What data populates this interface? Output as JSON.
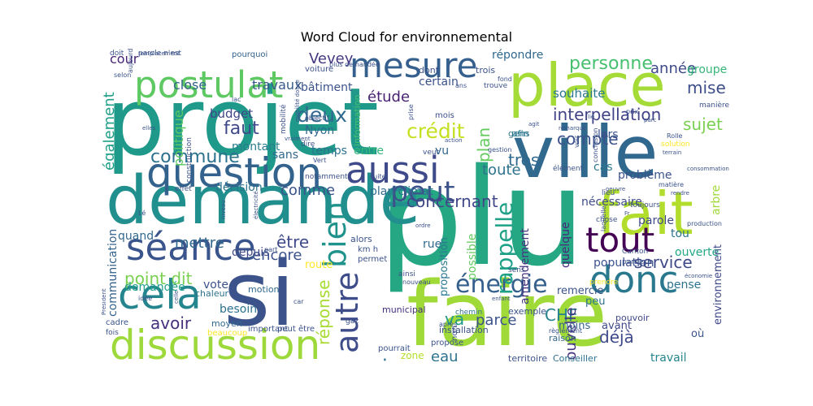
{
  "chart_data": {
    "type": "wordcloud",
    "title": "Word Cloud for environnemental",
    "colormap": "viridis",
    "words": [
      {
        "text": "plu",
        "color": "#26a784"
      },
      {
        "text": "projet",
        "color": "#1f9a8a"
      },
      {
        "text": "si",
        "color": "#3b528b"
      },
      {
        "text": "faire",
        "color": "#a0da39"
      },
      {
        "text": "ville",
        "color": "#31688e"
      },
      {
        "text": "demande",
        "color": "#218f8d"
      },
      {
        "text": "place",
        "color": "#a5db36"
      },
      {
        "text": "fait",
        "color": "#b2dd2d"
      },
      {
        "text": "tout",
        "color": "#440154"
      },
      {
        "text": "discussion",
        "color": "#9dd93b"
      },
      {
        "text": "question",
        "color": "#33638d"
      },
      {
        "text": "postulat",
        "color": "#5ec962"
      },
      {
        "text": "mesure",
        "color": "#35608d"
      },
      {
        "text": "aussi",
        "color": "#3e4a89"
      },
      {
        "text": "cela",
        "color": "#25858e"
      },
      {
        "text": "séance",
        "color": "#3a548c"
      },
      {
        "text": "donc",
        "color": "#2a788e"
      },
      {
        "text": "bien",
        "color": "#20928c"
      },
      {
        "text": "peut",
        "color": "#3b528b"
      },
      {
        "text": "autre",
        "color": "#3e4c8a"
      },
      {
        "text": "énergie",
        "color": "#355f8d"
      },
      {
        "text": "personne",
        "color": "#46c06f"
      },
      {
        "text": "interpellation",
        "color": "#414487"
      },
      {
        "text": "crédit",
        "color": "#c5e021"
      },
      {
        "text": "compte",
        "color": "#3b528b"
      },
      {
        "text": "faut",
        "color": "#3e4989"
      },
      {
        "text": "deux",
        "color": "#31688e"
      },
      {
        "text": "commune",
        "color": "#2c728e"
      },
      {
        "text": "concernant",
        "color": "#3f4788"
      },
      {
        "text": "comme",
        "color": "#3b528b"
      },
      {
        "text": "mise",
        "color": "#3d4e8a"
      },
      {
        "text": "sujet",
        "color": "#7ad151"
      },
      {
        "text": "année",
        "color": "#3e4a89"
      },
      {
        "text": "étude",
        "color": "#482173"
      },
      {
        "text": "plan",
        "color": "#65cb5e"
      },
      {
        "text": "rappelle",
        "color": "#1fa187"
      },
      {
        "text": "très",
        "color": "#30698e"
      },
      {
        "text": "jour",
        "color": "#2c728e"
      },
      {
        "text": "point dit",
        "color": "#7ad151"
      },
      {
        "text": "avoir",
        "color": "#46307e"
      },
      {
        "text": "être",
        "color": "#3e4a89"
      },
      {
        "text": "encore",
        "color": "#3b528b"
      },
      {
        "text": "mettre",
        "color": "#31688e"
      },
      {
        "text": "réponse",
        "color": "#a8db34"
      },
      {
        "text": "service",
        "color": "#3e4989"
      },
      {
        "text": "déjà",
        "color": "#3e4989"
      },
      {
        "text": "CHF",
        "color": "#26818e"
      },
      {
        "text": "eau",
        "color": "#2c728e"
      },
      {
        "text": "va",
        "color": "#1f9a8a"
      },
      {
        "text": "parce",
        "color": "#3b528b"
      },
      {
        "text": "nouvelle",
        "color": "#46337f"
      },
      {
        "text": "toute",
        "color": "#2c728e"
      },
      {
        "text": "également",
        "color": "#1f9f88"
      },
      {
        "text": "Vevey",
        "color": "#453781"
      },
      {
        "text": "politique",
        "color": "#5ec962"
      },
      {
        "text": "budget",
        "color": "#3f4788"
      },
      {
        "text": "travaux",
        "color": "#38598c"
      },
      {
        "text": "close",
        "color": "#33638d"
      },
      {
        "text": "cour",
        "color": "#482475"
      },
      {
        "text": "répondre",
        "color": "#31688e"
      },
      {
        "text": "groupe",
        "color": "#35b779"
      },
      {
        "text": "souhaite",
        "color": "#2a788e"
      },
      {
        "text": "bâtiment",
        "color": "#3b528b"
      },
      {
        "text": "certain",
        "color": "#3b528b"
      },
      {
        "text": "Nyon",
        "color": "#31688e"
      },
      {
        "text": "temps",
        "color": "#2c728e"
      },
      {
        "text": "montant",
        "color": "#287c8e"
      },
      {
        "text": "sans",
        "color": "#31688e"
      },
      {
        "text": "entre",
        "color": "#35b779"
      },
      {
        "text": "vu",
        "color": "#31688e"
      },
      {
        "text": "plan climat",
        "color": "#2f6b8e"
      },
      {
        "text": "lors",
        "color": "#3b528b"
      },
      {
        "text": "cas",
        "color": "#2a788e"
      },
      {
        "text": "problème",
        "color": "#3b528b"
      },
      {
        "text": "arbre",
        "color": "#a0da39"
      },
      {
        "text": "nécessaire",
        "color": "#3e4c8a"
      },
      {
        "text": "quelque",
        "color": "#482878"
      },
      {
        "text": "possible",
        "color": "#63cb5f"
      },
      {
        "text": "amendement",
        "color": "#46337f"
      },
      {
        "text": "tou",
        "color": "#2c728e"
      },
      {
        "text": "ouverte",
        "color": "#22a785"
      },
      {
        "text": "parole",
        "color": "#3e4a89"
      },
      {
        "text": "population",
        "color": "#3b528b"
      },
      {
        "text": "décision",
        "color": "#2c728e"
      },
      {
        "text": "depuis",
        "color": "#3e4a89"
      },
      {
        "text": "quand",
        "color": "#31688e"
      },
      {
        "text": "communication",
        "color": "#33638d"
      },
      {
        "text": "demandée",
        "color": "#1f9e89"
      },
      {
        "text": "vote",
        "color": "#3b528b"
      },
      {
        "text": "besoin",
        "color": "#2c728e"
      },
      {
        "text": "route",
        "color": "#fde725"
      },
      {
        "text": "rue",
        "color": "#31688e"
      },
      {
        "text": "proposition",
        "color": "#2a788e"
      },
      {
        "text": "remercie",
        "color": "#3b528b"
      },
      {
        "text": "pense",
        "color": "#2c728e"
      },
      {
        "text": "peu",
        "color": "#2c728e"
      },
      {
        "text": "avant",
        "color": "#3e4989"
      },
      {
        "text": "moins",
        "color": "#33638d"
      },
      {
        "text": "environnement",
        "color": "#3e4989"
      },
      {
        "text": "travail",
        "color": "#25848e"
      },
      {
        "text": "où",
        "color": "#3b528b"
      },
      {
        "text": "zone",
        "color": "#b5de2b"
      },
      {
        "text": "Conseiller",
        "color": "#2c728e"
      },
      {
        "text": "territoire",
        "color": "#3b528b"
      },
      {
        "text": "raison",
        "color": "#31688e"
      },
      {
        "text": "exemple",
        "color": "#3b528b"
      },
      {
        "text": "pouvoir",
        "color": "#3e4989"
      },
      {
        "text": "moyen",
        "color": "#31688e"
      },
      {
        "text": "chaleur",
        "color": "#2c728e"
      },
      {
        "text": "motion",
        "color": "#31688e"
      },
      {
        "text": "installation",
        "color": "#3b528b"
      },
      {
        "text": "municipal",
        "color": "#46307e"
      },
      {
        "text": "alors",
        "color": "#3b528b"
      },
      {
        "text": "km h",
        "color": "#3b528b"
      },
      {
        "text": "permet",
        "color": "#3b528b"
      },
      {
        "text": "information",
        "color": "#46c06f"
      },
      {
        "text": "afin",
        "color": "#287c8e"
      },
      {
        "text": "gens",
        "color": "#2c728e"
      },
      {
        "text": "dont",
        "color": "#3b528b"
      },
      {
        "text": "trois",
        "color": "#3b528b"
      },
      {
        "text": "mois",
        "color": "#3b528b"
      },
      {
        "text": "voiture",
        "color": "#3b528b"
      },
      {
        "text": "pourquoi",
        "color": "#33638d"
      },
      {
        "text": "doit",
        "color": "#3b528b"
      },
      {
        "text": "parole n'est",
        "color": "#3b528b"
      },
      {
        "text": "plus demandée",
        "color": "#3b528b"
      },
      {
        "text": "trouve",
        "color": "#3b528b"
      },
      {
        "text": "manière",
        "color": "#3b528b"
      },
      {
        "text": "matière",
        "color": "#3b528b"
      },
      {
        "text": "peut être",
        "color": "#3b528b"
      },
      {
        "text": "important",
        "color": "#3b528b"
      },
      {
        "text": "beaucoup",
        "color": "#fde725"
      },
      {
        "text": "propose",
        "color": "#3b528b"
      },
      {
        "text": "pourrait",
        "color": "#3b528b"
      },
      {
        "text": "gaz",
        "color": "#3b528b"
      },
      {
        "text": "non",
        "color": "#3b528b"
      },
      {
        "text": "chemin",
        "color": "#2c728e"
      },
      {
        "text": "après",
        "color": "#3b528b"
      },
      {
        "text": "cadre",
        "color": "#3b528b"
      },
      {
        "text": "fois",
        "color": "#3b528b"
      },
      {
        "text": "idée",
        "color": "#3b528b"
      },
      {
        "text": "selon",
        "color": "#3b528b"
      },
      {
        "text": "remplacement",
        "color": "#3b528b"
      },
      {
        "text": "lieu",
        "color": "#3b528b"
      },
      {
        "text": "élément",
        "color": "#3b528b"
      },
      {
        "text": "production",
        "color": "#3b528b"
      },
      {
        "text": "laquelle",
        "color": "#3b528b"
      },
      {
        "text": "chose",
        "color": "#3b528b"
      },
      {
        "text": "prendre",
        "color": "#fde725"
      },
      {
        "text": "partie",
        "color": "#3b528b"
      },
      {
        "text": "toujours",
        "color": "#3b528b"
      },
      {
        "text": "Canton",
        "color": "#3b528b"
      },
      {
        "text": "règlement",
        "color": "#3b528b"
      },
      {
        "text": "construction",
        "color": "#3b528b"
      },
      {
        "text": "mobilité",
        "color": "#3b528b"
      },
      {
        "text": "objectif",
        "color": "#3b528b"
      },
      {
        "text": "effet",
        "color": "#3b528b"
      },
      {
        "text": "notamment",
        "color": "#3b528b"
      },
      {
        "text": "veut",
        "color": "#3b528b"
      },
      {
        "text": "suite",
        "color": "#3b528b"
      },
      {
        "text": "gestion",
        "color": "#3b528b"
      },
      {
        "text": "Vert",
        "color": "#3b528b"
      },
      {
        "text": "dire",
        "color": "#3b528b"
      },
      {
        "text": "nouveau",
        "color": "#3b528b"
      },
      {
        "text": "ainsi",
        "color": "#3b528b"
      },
      {
        "text": "sens",
        "color": "#3b528b"
      },
      {
        "text": "part",
        "color": "#3b528b"
      },
      {
        "text": "fond",
        "color": "#3b528b"
      },
      {
        "text": "prise",
        "color": "#3b528b"
      },
      {
        "text": "agit",
        "color": "#3b528b"
      },
      {
        "text": "remarque",
        "color": "#3b528b"
      },
      {
        "text": "conclusion",
        "color": "#3b528b"
      },
      {
        "text": "Rolle",
        "color": "#3b528b"
      },
      {
        "text": "solution",
        "color": "#fde725"
      },
      {
        "text": "terrain",
        "color": "#3b528b"
      },
      {
        "text": "consommation",
        "color": "#3b528b"
      },
      {
        "text": "oeuvre",
        "color": "#3b528b"
      },
      {
        "text": "électricité",
        "color": "#3b528b"
      },
      {
        "text": "niveau",
        "color": "#3b528b"
      },
      {
        "text": "aujourd hui",
        "color": "#3b528b"
      },
      {
        "text": "lac",
        "color": "#3b528b"
      },
      {
        "text": "vraiment",
        "color": "#3b528b"
      },
      {
        "text": "elles",
        "color": "#3b528b"
      },
      {
        "text": "Président",
        "color": "#3b528b"
      },
      {
        "text": "celle",
        "color": "#3b528b"
      },
      {
        "text": "Fr",
        "color": "#3b528b"
      },
      {
        "text": "ordre",
        "color": "#3b528b"
      },
      {
        "text": "enfant",
        "color": "#3b528b"
      },
      {
        "text": "économie",
        "color": "#3b528b"
      },
      {
        "text": "action",
        "color": "#3b528b"
      },
      {
        "text": "voir",
        "color": "#3b528b"
      },
      {
        "text": "car",
        "color": "#3b528b"
      },
      {
        "text": "Lé",
        "color": "#3b528b"
      },
      {
        "text": "parc",
        "color": "#3b528b"
      },
      {
        "text": "lié",
        "color": "#3b528b"
      },
      {
        "text": "prix",
        "color": "#3b528b"
      },
      {
        "text": "mobilité douce",
        "color": "#3b528b"
      },
      {
        "text": "rendre",
        "color": "#3b528b"
      },
      {
        "text": "ans",
        "color": "#3b528b"
      }
    ]
  }
}
